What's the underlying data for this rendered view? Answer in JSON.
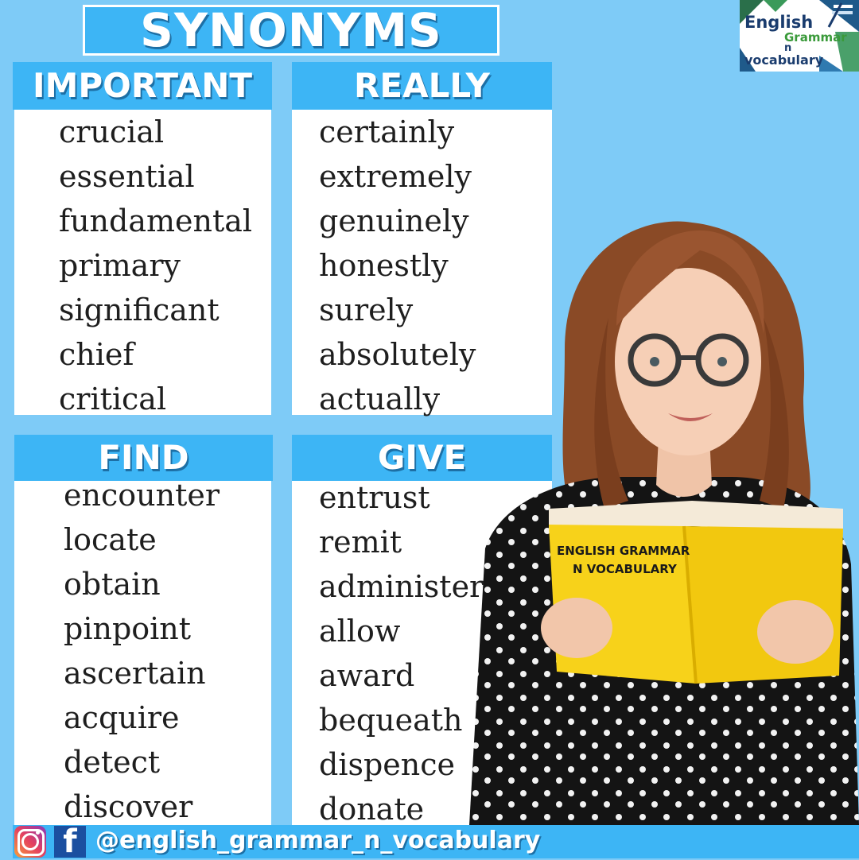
{
  "title": "SYNONYMS",
  "logo": {
    "line1": "English",
    "line2": "Grammar",
    "line3": "n",
    "line4": "vocabulary"
  },
  "panels": {
    "important": {
      "heading": "IMPORTANT",
      "words": [
        "crucial",
        "essential",
        "fundamental",
        "primary",
        "significant",
        "chief",
        "critical"
      ]
    },
    "really": {
      "heading": "REALLY",
      "words": [
        "certainly",
        "extremely",
        "genuinely",
        "honestly",
        "surely",
        "absolutely",
        "actually"
      ]
    },
    "find": {
      "heading": "FIND",
      "words": [
        "encounter",
        "locate",
        "obtain",
        "pinpoint",
        "ascertain",
        "acquire",
        "detect",
        "discover"
      ]
    },
    "give": {
      "heading": "GIVE",
      "words": [
        "entrust",
        "remit",
        "administer",
        "allow",
        "award",
        "bequeath",
        "dispence",
        "donate"
      ]
    }
  },
  "book": {
    "line1": "ENGLISH GRAMMAR",
    "line2": "N VOCABULARY"
  },
  "footer": {
    "handle": "@english_grammar_n_vocabulary",
    "instagram_icon": "instagram-icon",
    "facebook_icon": "facebook-icon",
    "facebook_glyph": "f"
  },
  "colors": {
    "background": "#7ecbf7",
    "header_blue": "#3db5f5",
    "book_yellow": "#f7d21a"
  }
}
